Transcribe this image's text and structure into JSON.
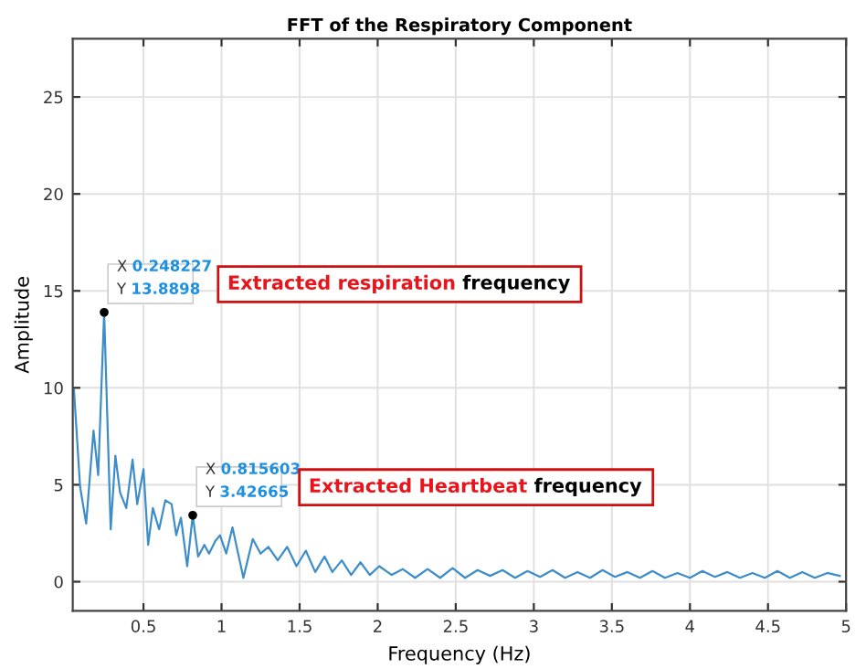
{
  "chart_data": {
    "type": "line",
    "title": "FFT of the Respiratory Component",
    "xlabel": "Frequency (Hz)",
    "ylabel": "Amplitude",
    "xlim": [
      0.047,
      5
    ],
    "ylim": [
      -1.5,
      28
    ],
    "xticks": [
      0.5,
      1,
      1.5,
      2,
      2.5,
      3,
      3.5,
      4,
      4.5,
      5
    ],
    "yticks": [
      0,
      5,
      10,
      15,
      20,
      25
    ],
    "grid": true,
    "marker": "none",
    "line_style": "solid",
    "series": [
      {
        "color": "#3c8dc8",
        "x": [
          0.055,
          0.094,
          0.133,
          0.18,
          0.21,
          0.248227,
          0.29,
          0.32,
          0.35,
          0.39,
          0.43,
          0.46,
          0.5,
          0.53,
          0.56,
          0.6,
          0.64,
          0.68,
          0.71,
          0.74,
          0.78,
          0.815603,
          0.85,
          0.89,
          0.92,
          0.96,
          0.99,
          1.03,
          1.07,
          1.14,
          1.2,
          1.25,
          1.3,
          1.36,
          1.42,
          1.48,
          1.54,
          1.6,
          1.66,
          1.71,
          1.77,
          1.83,
          1.89,
          1.95,
          2.01,
          2.09,
          2.16,
          2.24,
          2.32,
          2.4,
          2.48,
          2.56,
          2.64,
          2.72,
          2.8,
          2.88,
          2.96,
          3.04,
          3.12,
          3.2,
          3.28,
          3.36,
          3.44,
          3.52,
          3.6,
          3.68,
          3.76,
          3.84,
          3.92,
          4.0,
          4.08,
          4.16,
          4.24,
          4.32,
          4.4,
          4.48,
          4.56,
          4.64,
          4.72,
          4.8,
          4.88,
          4.96
        ],
        "values": [
          9.9,
          4.9,
          3.0,
          7.8,
          5.5,
          13.8898,
          2.7,
          6.5,
          4.6,
          3.8,
          6.3,
          4.0,
          5.8,
          1.9,
          3.8,
          2.7,
          4.2,
          4.0,
          2.4,
          3.3,
          0.8,
          3.42665,
          1.3,
          1.9,
          1.45,
          2.1,
          2.4,
          1.45,
          2.8,
          0.2,
          2.2,
          1.45,
          1.8,
          1.1,
          1.8,
          0.8,
          1.6,
          0.5,
          1.3,
          0.5,
          1.1,
          0.35,
          1.0,
          0.35,
          0.8,
          0.35,
          0.65,
          0.2,
          0.65,
          0.2,
          0.7,
          0.2,
          0.6,
          0.3,
          0.6,
          0.2,
          0.55,
          0.25,
          0.6,
          0.2,
          0.5,
          0.2,
          0.6,
          0.25,
          0.5,
          0.2,
          0.55,
          0.2,
          0.45,
          0.2,
          0.55,
          0.25,
          0.5,
          0.2,
          0.45,
          0.2,
          0.55,
          0.2,
          0.5,
          0.2,
          0.45,
          0.3
        ]
      }
    ],
    "annotations": [
      {
        "text": "X 0.248227\nY 13.8898",
        "x": 0.248227,
        "y": 13.8898
      },
      {
        "text": "X 0.815603\nY 3.42665",
        "x": 0.815603,
        "y": 3.42665
      },
      "Extracted respiration frequency",
      "Extracted Heartbeat frequency"
    ]
  }
}
